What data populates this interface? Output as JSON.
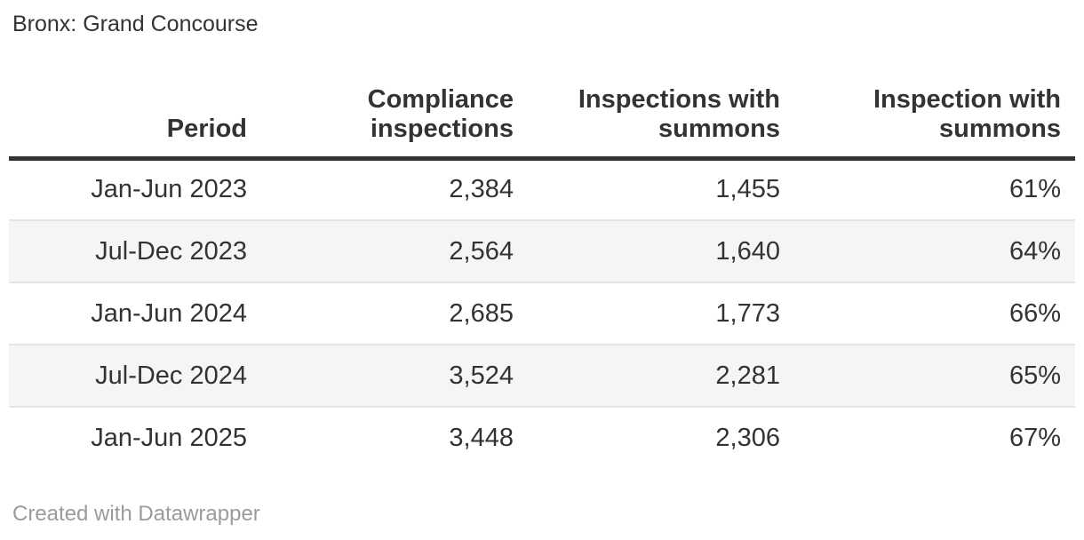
{
  "header": {
    "title": "Bronx: Grand Concourse"
  },
  "table": {
    "columns": [
      {
        "label": "Period"
      },
      {
        "label": "Compliance inspections"
      },
      {
        "label": "Inspections with summons"
      },
      {
        "label": "Inspection with summons"
      }
    ],
    "rows": [
      {
        "cells": [
          "Jan-Jun 2023",
          "2,384",
          "1,455",
          "61%"
        ]
      },
      {
        "cells": [
          "Jul-Dec 2023",
          "2,564",
          "1,640",
          "64%"
        ]
      },
      {
        "cells": [
          "Jan-Jun 2024",
          "2,685",
          "1,773",
          "66%"
        ]
      },
      {
        "cells": [
          "Jul-Dec 2024",
          "3,524",
          "2,281",
          "65%"
        ]
      },
      {
        "cells": [
          "Jan-Jun 2025",
          "3,448",
          "2,306",
          "67%"
        ]
      }
    ]
  },
  "footer": {
    "credit": "Created with Datawrapper"
  },
  "colors": {
    "text": "#333333",
    "header_rule": "#333333",
    "row_alt_bg": "#f5f5f5",
    "row_divider": "#e4e4e4",
    "credit_text": "#9b9b9b"
  },
  "chart_data": {
    "type": "table",
    "title": "Bronx: Grand Concourse",
    "columns": [
      "Period",
      "Compliance inspections",
      "Inspections with summons",
      "Inspection with summons"
    ],
    "rows": [
      [
        "Jan-Jun 2023",
        2384,
        1455,
        "61%"
      ],
      [
        "Jul-Dec 2023",
        2564,
        1640,
        "64%"
      ],
      [
        "Jan-Jun 2024",
        2685,
        1773,
        "66%"
      ],
      [
        "Jul-Dec 2024",
        3524,
        2281,
        "65%"
      ],
      [
        "Jan-Jun 2025",
        3448,
        2306,
        "67%"
      ]
    ],
    "notes": "Zebra-striped Datawrapper table; numeric columns right-aligned; percent column = share of compliance inspections resulting in summons"
  }
}
